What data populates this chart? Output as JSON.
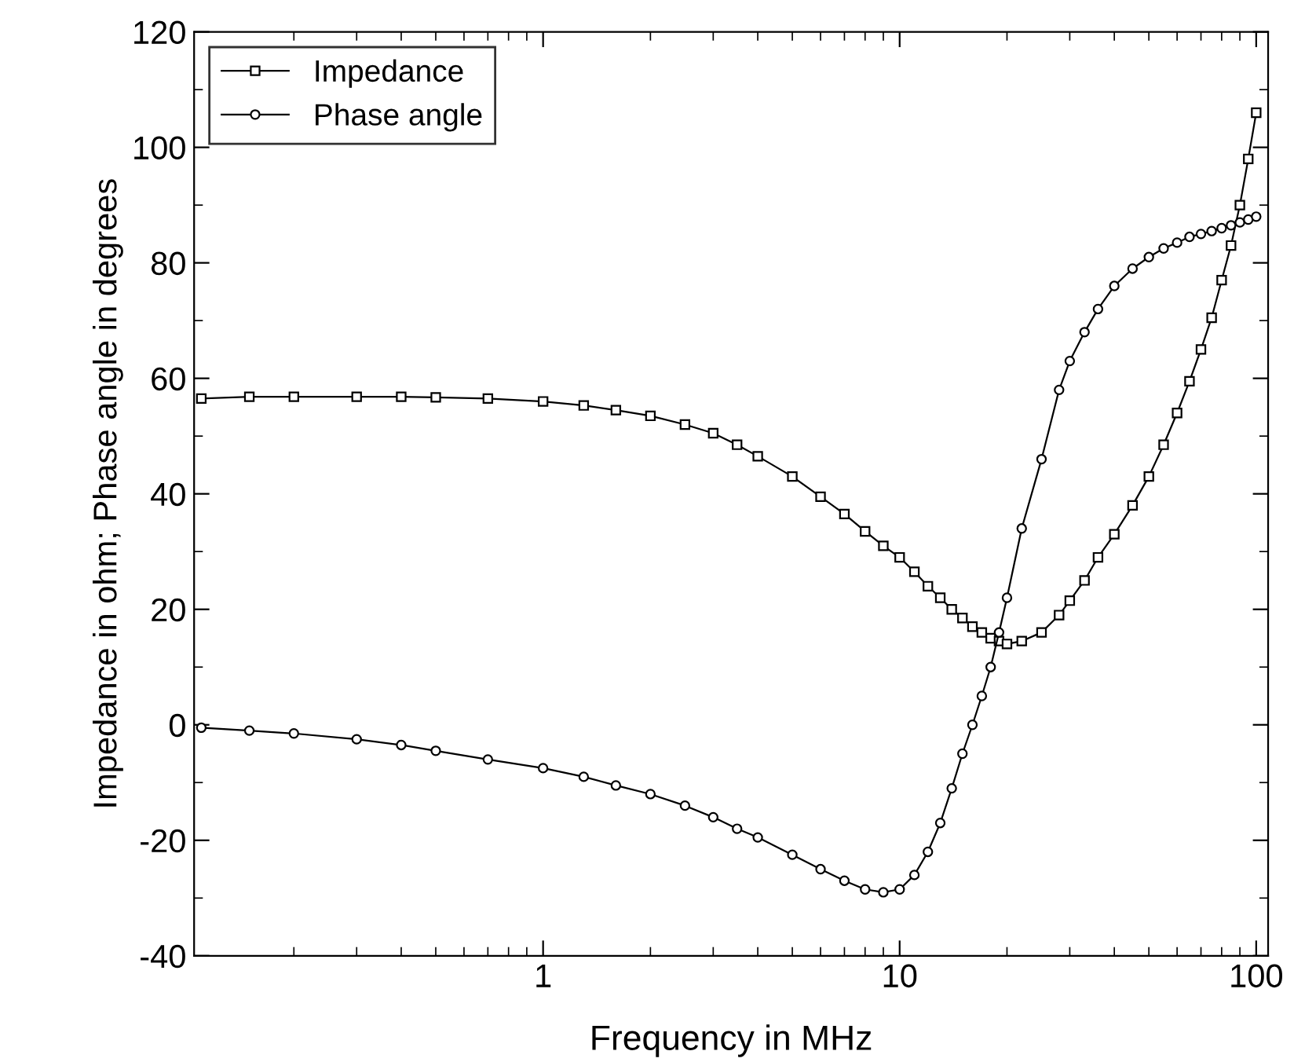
{
  "chart_data": {
    "type": "line",
    "xlabel": "Frequency in MHz",
    "ylabel": "Impedance in ohm; Phase angle in degrees",
    "log": "x",
    "xlim": [
      0.105,
      108
    ],
    "xticks": [
      1,
      10,
      100
    ],
    "ylim": [
      -40,
      120
    ],
    "yticks": [
      -40,
      -20,
      0,
      20,
      40,
      60,
      80,
      100,
      120
    ],
    "grid": false,
    "legend": "top left",
    "line_style": "solid",
    "series": [
      {
        "name": "Impedance",
        "color": "#000000",
        "marker": "square",
        "x": [
          0.11,
          0.15,
          0.2,
          0.3,
          0.4,
          0.5,
          0.7,
          1,
          1.3,
          1.6,
          2,
          2.5,
          3,
          3.5,
          4,
          5,
          6,
          7,
          8,
          9,
          10,
          11,
          12,
          13,
          14,
          15,
          16,
          17,
          18,
          19,
          20,
          22,
          25,
          28,
          30,
          33,
          36,
          40,
          45,
          50,
          55,
          60,
          65,
          70,
          75,
          80,
          85,
          90,
          95,
          100
        ],
        "values": [
          56.5,
          56.8,
          56.8,
          56.8,
          56.8,
          56.7,
          56.5,
          56,
          55.3,
          54.5,
          53.5,
          52,
          50.5,
          48.5,
          46.5,
          43,
          39.5,
          36.5,
          33.5,
          31,
          29,
          26.5,
          24,
          22,
          20,
          18.5,
          17,
          16,
          15,
          14.5,
          14,
          14.5,
          16,
          19,
          21.5,
          25,
          29,
          33,
          38,
          43,
          48.5,
          54,
          59.5,
          65,
          70.5,
          77,
          83,
          90,
          98,
          106
        ]
      },
      {
        "name": "Phase angle",
        "color": "#000000",
        "marker": "circle",
        "x": [
          0.11,
          0.15,
          0.2,
          0.3,
          0.4,
          0.5,
          0.7,
          1,
          1.3,
          1.6,
          2,
          2.5,
          3,
          3.5,
          4,
          5,
          6,
          7,
          8,
          9,
          10,
          11,
          12,
          13,
          14,
          15,
          16,
          17,
          18,
          19,
          20,
          22,
          25,
          28,
          30,
          33,
          36,
          40,
          45,
          50,
          55,
          60,
          65,
          70,
          75,
          80,
          85,
          90,
          95,
          100
        ],
        "values": [
          -0.5,
          -1,
          -1.5,
          -2.5,
          -3.5,
          -4.5,
          -6,
          -7.5,
          -9,
          -10.5,
          -12,
          -14,
          -16,
          -18,
          -19.5,
          -22.5,
          -25,
          -27,
          -28.5,
          -29,
          -28.5,
          -26,
          -22,
          -17,
          -11,
          -5,
          0,
          5,
          10,
          16,
          22,
          34,
          46,
          58,
          63,
          68,
          72,
          76,
          79,
          81,
          82.5,
          83.5,
          84.5,
          85,
          85.5,
          86,
          86.5,
          87,
          87.5,
          88
        ]
      }
    ]
  }
}
